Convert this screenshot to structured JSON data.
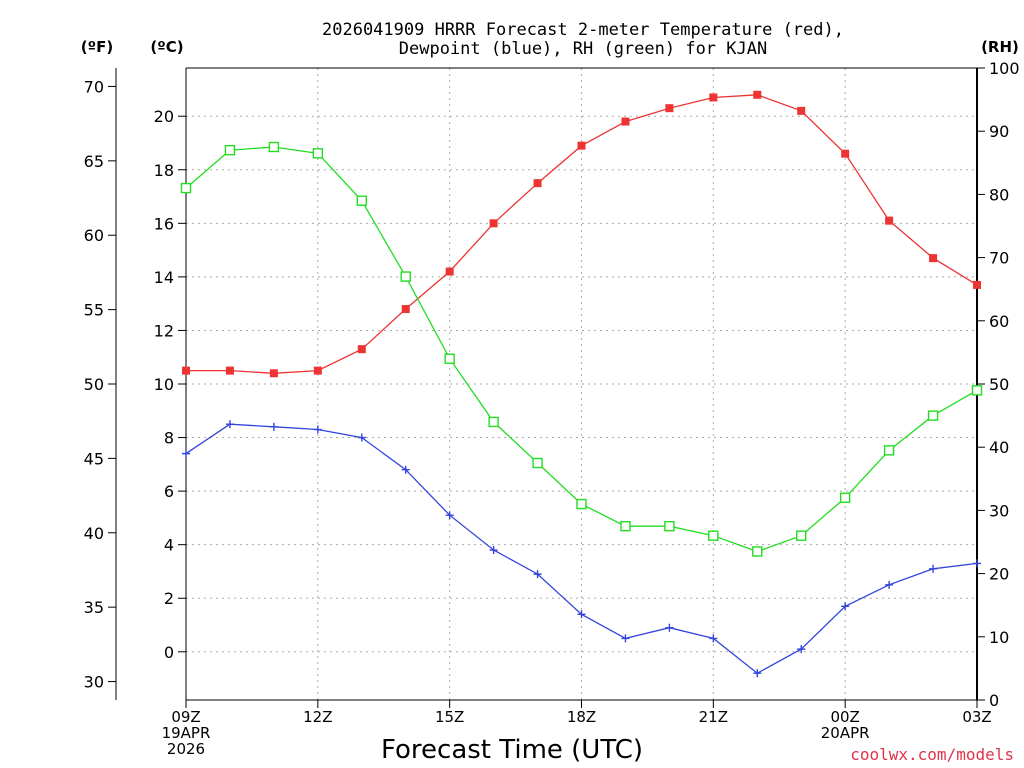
{
  "chart_data": {
    "type": "line",
    "title_lines": [
      "2026041909 HRRR Forecast 2-meter Temperature (red),",
      "Dewpoint (blue), RH (green) for KJAN"
    ],
    "xlabel": "Forecast Time (UTC)",
    "credit": "coolwx.com/models",
    "units": {
      "fahrenheit": "(ºF)",
      "celsius": "(ºC)",
      "rh": "(RH)"
    },
    "hours": [
      0,
      1,
      2,
      3,
      4,
      5,
      6,
      7,
      8,
      9,
      10,
      11,
      12,
      13,
      14,
      15,
      16,
      17,
      18
    ],
    "x_ticks": [
      {
        "hour": 0,
        "lines": [
          "09Z",
          "19APR",
          "2026"
        ]
      },
      {
        "hour": 3,
        "lines": [
          "12Z"
        ]
      },
      {
        "hour": 6,
        "lines": [
          "15Z"
        ]
      },
      {
        "hour": 9,
        "lines": [
          "18Z"
        ]
      },
      {
        "hour": 12,
        "lines": [
          "21Z"
        ]
      },
      {
        "hour": 15,
        "lines": [
          "00Z",
          "20APR"
        ]
      },
      {
        "hour": 18,
        "lines": [
          "03Z"
        ]
      }
    ],
    "celsius_axis": {
      "range": [
        -1.8,
        21.8
      ],
      "ticks": [
        0,
        2,
        4,
        6,
        8,
        10,
        12,
        14,
        16,
        18,
        20
      ]
    },
    "fahrenheit_axis": {
      "ticks": [
        30,
        35,
        40,
        45,
        50,
        55,
        60,
        65,
        70
      ]
    },
    "rh_axis": {
      "range": [
        0,
        100
      ],
      "ticks": [
        0,
        10,
        20,
        30,
        40,
        50,
        60,
        70,
        80,
        90,
        100
      ]
    },
    "series": [
      {
        "name": "Temperature",
        "units": "C",
        "color": "#ee3333",
        "marker": "filled-square",
        "values": [
          10.5,
          10.5,
          10.4,
          10.5,
          11.3,
          12.8,
          14.2,
          16.0,
          17.5,
          18.9,
          19.8,
          20.3,
          20.7,
          20.8,
          20.2,
          18.6,
          16.1,
          14.7,
          13.7
        ]
      },
      {
        "name": "Dewpoint",
        "units": "C",
        "color": "#3344dd",
        "marker": "plus",
        "values": [
          7.4,
          8.5,
          8.4,
          8.3,
          8.0,
          6.8,
          5.1,
          3.8,
          2.9,
          1.4,
          0.5,
          0.9,
          0.5,
          -0.8,
          0.1,
          1.7,
          2.5,
          3.1,
          3.3
        ]
      },
      {
        "name": "RH",
        "units": "%",
        "color": "#22dd22",
        "marker": "open-square",
        "values": [
          81,
          87,
          87.5,
          86.5,
          79,
          67,
          54,
          44,
          37.5,
          31,
          27.5,
          27.5,
          26,
          23.5,
          26,
          32,
          39.5,
          45,
          49
        ]
      }
    ]
  }
}
